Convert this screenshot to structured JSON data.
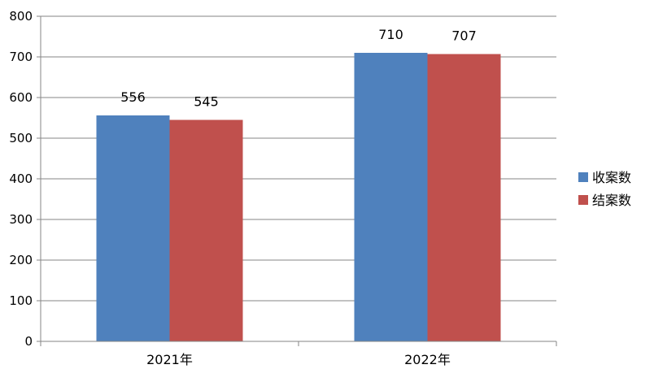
{
  "chart_data": {
    "type": "bar",
    "categories": [
      "2021年",
      "2022年"
    ],
    "series": [
      {
        "name": "收案数",
        "values": [
          556,
          710
        ],
        "color": "#4F81BD"
      },
      {
        "name": "结案数",
        "values": [
          545,
          707
        ],
        "color": "#C0504D"
      }
    ],
    "ylim": [
      0,
      800
    ],
    "yticks": [
      0,
      100,
      200,
      300,
      400,
      500,
      600,
      700,
      800
    ],
    "grid": true,
    "data_labels": true,
    "legend_position": "right"
  }
}
